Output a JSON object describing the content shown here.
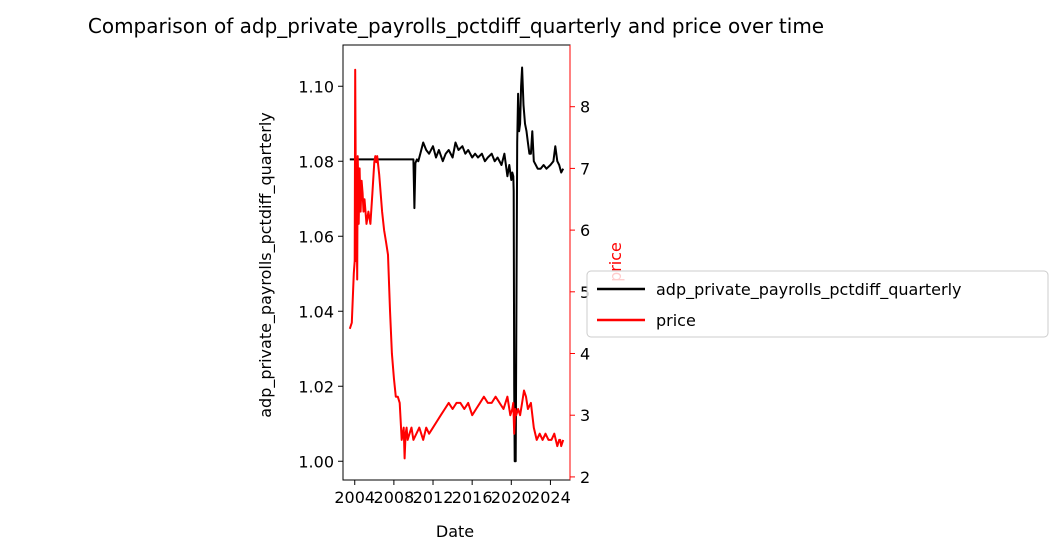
{
  "chart_data": {
    "type": "line",
    "title": "Comparison of adp_private_payrolls_pctdiff_quarterly and price over time",
    "xlabel": "Date",
    "ylabel_left": "adp_private_payrolls_pctdiff_quarterly",
    "ylabel_right": "price",
    "x_range": [
      2002.8,
      2026.0
    ],
    "ylim_left": [
      0.995,
      1.111
    ],
    "ylim_right": [
      1.95,
      9.0
    ],
    "x_ticks": [
      "2004",
      "2008",
      "2012",
      "2016",
      "2020",
      "2024"
    ],
    "y_ticks_left": [
      "1.00",
      "1.02",
      "1.04",
      "1.06",
      "1.08",
      "1.10"
    ],
    "y_ticks_right": [
      "2",
      "3",
      "4",
      "5",
      "6",
      "7",
      "8"
    ],
    "grid": false,
    "legend_position": "outside right",
    "series": [
      {
        "name": "adp_private_payrolls_pctdiff_quarterly",
        "axis": "left",
        "color": "#000000",
        "x": [
          2003.5,
          2009.9,
          2010.0,
          2010.1,
          2010.2,
          2010.35,
          2010.5,
          2010.7,
          2011.0,
          2011.3,
          2011.6,
          2012.0,
          2012.3,
          2012.6,
          2013.0,
          2013.3,
          2013.6,
          2014.0,
          2014.3,
          2014.6,
          2015.0,
          2015.3,
          2015.6,
          2016.0,
          2016.3,
          2016.6,
          2017.0,
          2017.3,
          2017.6,
          2018.0,
          2018.3,
          2018.6,
          2019.0,
          2019.3,
          2019.6,
          2019.8,
          2020.0,
          2020.1,
          2020.2,
          2020.25,
          2020.3,
          2020.35,
          2020.45,
          2020.6,
          2020.7,
          2020.8,
          2020.9,
          2021.0,
          2021.1,
          2021.25,
          2021.4,
          2021.55,
          2021.7,
          2021.85,
          2022.0,
          2022.15,
          2022.3,
          2022.5,
          2022.7,
          2023.0,
          2023.3,
          2023.6,
          2024.0,
          2024.3,
          2024.5,
          2024.7,
          2024.9,
          2025.1,
          2025.3
        ],
        "values": [
          1.0805,
          1.0805,
          1.0805,
          1.0675,
          1.0795,
          1.0805,
          1.08,
          1.082,
          1.085,
          1.083,
          1.082,
          1.084,
          1.081,
          1.083,
          1.08,
          1.082,
          1.083,
          1.081,
          1.085,
          1.083,
          1.084,
          1.082,
          1.083,
          1.081,
          1.082,
          1.081,
          1.082,
          1.08,
          1.081,
          1.082,
          1.08,
          1.081,
          1.079,
          1.082,
          1.076,
          1.079,
          1.075,
          1.077,
          1.076,
          1.072,
          1.02,
          1.0,
          1.0,
          1.085,
          1.098,
          1.088,
          1.09,
          1.1,
          1.105,
          1.095,
          1.09,
          1.088,
          1.085,
          1.082,
          1.082,
          1.088,
          1.08,
          1.079,
          1.078,
          1.078,
          1.079,
          1.078,
          1.079,
          1.08,
          1.084,
          1.08,
          1.079,
          1.077,
          1.078
        ]
      },
      {
        "name": "price",
        "axis": "right",
        "color": "#ff0000",
        "x": [
          2003.5,
          2003.7,
          2003.8,
          2003.9,
          2004.0,
          2004.05,
          2004.1,
          2004.15,
          2004.2,
          2004.25,
          2004.3,
          2004.35,
          2004.4,
          2004.5,
          2004.6,
          2004.7,
          2004.8,
          2004.9,
          2005.0,
          2005.2,
          2005.4,
          2005.6,
          2005.8,
          2006.0,
          2006.1,
          2006.2,
          2006.3,
          2006.5,
          2006.8,
          2007.0,
          2007.2,
          2007.4,
          2007.6,
          2007.8,
          2008.0,
          2008.2,
          2008.4,
          2008.6,
          2008.8,
          2009.0,
          2009.1,
          2009.2,
          2009.3,
          2009.4,
          2009.6,
          2009.8,
          2010.0,
          2010.3,
          2010.6,
          2011.0,
          2011.3,
          2011.6,
          2012.0,
          2012.4,
          2012.8,
          2013.2,
          2013.6,
          2014.0,
          2014.4,
          2014.8,
          2015.2,
          2015.6,
          2016.0,
          2016.4,
          2016.8,
          2017.2,
          2017.6,
          2018.0,
          2018.4,
          2018.8,
          2019.2,
          2019.6,
          2019.9,
          2020.1,
          2020.2,
          2020.3,
          2020.4,
          2020.5,
          2020.7,
          2020.9,
          2021.1,
          2021.3,
          2021.5,
          2021.7,
          2022.0,
          2022.3,
          2022.6,
          2022.9,
          2023.2,
          2023.5,
          2023.8,
          2024.1,
          2024.4,
          2024.7,
          2024.9,
          2025.0,
          2025.1,
          2025.3
        ],
        "values": [
          4.4,
          4.5,
          4.9,
          5.3,
          5.5,
          8.6,
          7.0,
          5.5,
          6.2,
          5.2,
          7.2,
          6.8,
          6.1,
          7.0,
          6.3,
          6.8,
          6.6,
          6.3,
          6.5,
          6.1,
          6.3,
          6.1,
          6.6,
          7.1,
          7.2,
          7.1,
          7.2,
          6.9,
          6.3,
          6.0,
          5.8,
          5.6,
          4.7,
          4.0,
          3.6,
          3.3,
          3.3,
          3.2,
          2.6,
          2.8,
          2.3,
          2.7,
          2.8,
          2.6,
          2.7,
          2.8,
          2.6,
          2.7,
          2.8,
          2.6,
          2.8,
          2.7,
          2.8,
          2.9,
          3.0,
          3.1,
          3.2,
          3.1,
          3.2,
          3.2,
          3.1,
          3.2,
          3.0,
          3.1,
          3.2,
          3.3,
          3.2,
          3.2,
          3.3,
          3.2,
          3.1,
          3.3,
          3.0,
          3.1,
          3.2,
          2.7,
          3.1,
          3.0,
          3.1,
          3.0,
          3.2,
          3.4,
          3.3,
          3.1,
          3.2,
          2.8,
          2.6,
          2.7,
          2.6,
          2.7,
          2.6,
          2.6,
          2.7,
          2.5,
          2.6,
          2.6,
          2.5,
          2.6
        ]
      }
    ]
  }
}
